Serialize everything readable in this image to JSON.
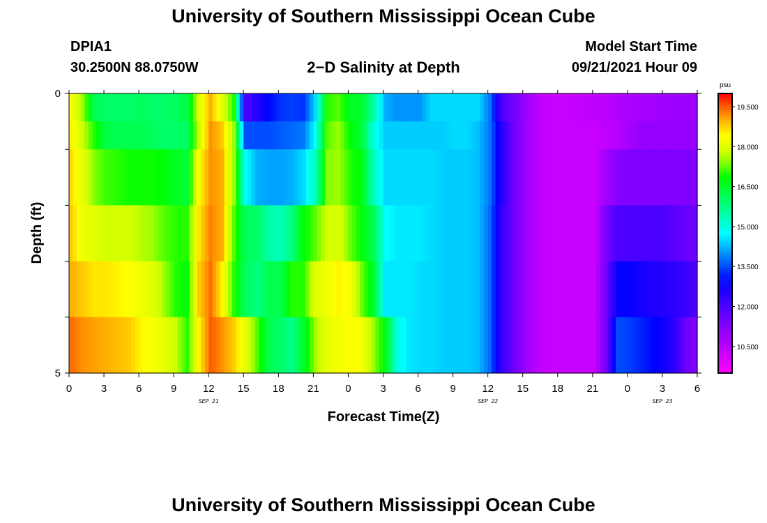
{
  "header": {
    "title": "University of Southern Mississippi Ocean Cube",
    "station": "DPIA1",
    "coords": "30.2500N  88.0750W",
    "chart_title": "2−D Salinity at Depth",
    "start_label": "Model Start Time",
    "start_value": "09/21/2021 Hour 09"
  },
  "footer": {
    "title": "University of Southern Mississippi Ocean Cube"
  },
  "chart_data": {
    "type": "heatmap",
    "title": "2-D Salinity at Depth",
    "xlabel": "Forecast Time(Z)",
    "ylabel": "Depth (ft)",
    "x_tick_labels": [
      "0",
      "3",
      "6",
      "9",
      "12",
      "15",
      "18",
      "21",
      "0",
      "3",
      "6",
      "9",
      "12",
      "15",
      "18",
      "21",
      "0",
      "3",
      "6"
    ],
    "x_range_hours": [
      0,
      54
    ],
    "date_labels": [
      {
        "label": "SEP 21",
        "hour": 12
      },
      {
        "label": "SEP 22",
        "hour": 36
      },
      {
        "label": "SEP 23",
        "hour": 51
      }
    ],
    "y_tick_labels": [
      "0",
      "5"
    ],
    "ylim": [
      0,
      5
    ],
    "colorbar": {
      "unit": "psu",
      "min": 9.5,
      "max": 20.0,
      "labels": [
        "19.500",
        "18.000",
        "16.500",
        "15.000",
        "13.500",
        "12.000",
        "10.500"
      ],
      "label_values": [
        19.5,
        18.0,
        16.5,
        15.0,
        13.5,
        12.0,
        10.5
      ]
    },
    "depth_levels_ft": [
      0,
      0.5,
      1.5,
      2.5,
      3.5,
      4.5
    ],
    "hours": [
      0,
      1,
      2,
      3,
      4,
      5,
      6,
      7,
      8,
      9,
      10,
      11,
      12,
      13,
      14,
      15,
      16,
      17,
      18,
      19,
      20,
      21,
      22,
      23,
      24,
      25,
      26,
      27,
      28,
      29,
      30,
      31,
      32,
      33,
      34,
      35,
      36,
      37,
      38,
      39,
      40,
      41,
      42,
      43,
      44,
      45,
      46,
      47,
      48,
      49,
      50,
      51,
      52,
      53,
      54
    ],
    "series": [
      {
        "name": "0 ft",
        "values": [
          18.3,
          17.5,
          16.2,
          16.0,
          16.0,
          16.0,
          16.1,
          16.0,
          16.0,
          16.1,
          16.3,
          18.0,
          19.0,
          18.0,
          17.0,
          12.0,
          12.5,
          13.0,
          13.3,
          13.4,
          13.3,
          14.5,
          17.0,
          17.2,
          16.6,
          16.5,
          15.5,
          14.2,
          14.0,
          14.0,
          14.0,
          14.5,
          14.5,
          14.5,
          14.5,
          14.5,
          13.8,
          12.0,
          11.5,
          11.0,
          10.5,
          10.3,
          10.3,
          10.3,
          10.4,
          10.4,
          10.5,
          10.6,
          10.7,
          10.8,
          10.8,
          10.9,
          10.9,
          10.9,
          10.9
        ]
      },
      {
        "name": "0.5 ft",
        "values": [
          18.5,
          17.7,
          17.0,
          16.3,
          16.2,
          16.2,
          16.2,
          16.1,
          16.0,
          16.0,
          16.1,
          17.8,
          19.2,
          18.8,
          17.5,
          13.5,
          13.5,
          13.5,
          13.6,
          13.7,
          13.8,
          14.8,
          17.2,
          17.5,
          16.8,
          16.4,
          15.0,
          14.4,
          14.4,
          14.4,
          14.4,
          14.4,
          14.4,
          14.5,
          14.5,
          14.3,
          13.8,
          12.5,
          11.6,
          11.0,
          10.5,
          10.3,
          10.3,
          10.3,
          10.3,
          10.3,
          10.4,
          10.5,
          10.8,
          11.0,
          11.0,
          11.0,
          11.0,
          11.0,
          11.0
        ]
      },
      {
        "name": "1.5 ft",
        "values": [
          18.7,
          18.0,
          17.4,
          17.1,
          17.0,
          16.9,
          16.9,
          16.9,
          16.8,
          16.6,
          16.4,
          18.4,
          19.2,
          19.0,
          17.5,
          14.8,
          14.2,
          14.1,
          14.1,
          14.2,
          14.5,
          15.3,
          17.4,
          17.5,
          17.0,
          16.7,
          15.3,
          14.5,
          14.5,
          14.5,
          14.5,
          14.5,
          14.4,
          14.4,
          14.4,
          14.3,
          13.8,
          12.5,
          11.6,
          11.0,
          10.5,
          10.3,
          10.3,
          10.3,
          10.3,
          10.3,
          10.8,
          11.2,
          11.3,
          11.3,
          11.3,
          11.3,
          11.3,
          11.3,
          11.3
        ]
      },
      {
        "name": "2.5 ft",
        "values": [
          18.8,
          18.2,
          18.0,
          17.8,
          17.8,
          17.8,
          17.6,
          17.5,
          17.2,
          17.0,
          17.0,
          18.6,
          19.3,
          19.0,
          17.2,
          16.1,
          16.0,
          15.5,
          15.3,
          15.8,
          16.8,
          17.2,
          17.8,
          17.9,
          17.3,
          16.8,
          16.2,
          14.8,
          14.6,
          14.6,
          14.6,
          14.5,
          14.4,
          14.4,
          14.4,
          14.3,
          13.7,
          12.3,
          11.6,
          11.0,
          10.5,
          10.3,
          10.3,
          10.3,
          10.3,
          10.3,
          11.4,
          12.0,
          12.0,
          12.0,
          12.0,
          12.0,
          11.8,
          11.6,
          11.6
        ]
      },
      {
        "name": "3.5 ft",
        "values": [
          19.0,
          18.8,
          18.6,
          18.6,
          18.5,
          18.4,
          18.2,
          18.0,
          17.5,
          17.0,
          16.8,
          18.8,
          19.4,
          18.5,
          17.0,
          16.1,
          15.8,
          16.2,
          16.2,
          17.0,
          17.0,
          18.0,
          18.2,
          18.5,
          18.3,
          17.3,
          16.5,
          14.6,
          14.6,
          14.6,
          14.5,
          14.5,
          14.4,
          14.4,
          14.4,
          14.3,
          13.7,
          12.3,
          11.6,
          11.0,
          10.5,
          10.3,
          10.3,
          10.3,
          10.3,
          10.3,
          11.5,
          12.9,
          12.9,
          12.7,
          12.6,
          12.5,
          12.4,
          12.2,
          11.8
        ]
      },
      {
        "name": "4.5 ft",
        "values": [
          19.4,
          19.2,
          19.1,
          19.0,
          18.9,
          18.8,
          18.5,
          18.3,
          18.1,
          17.7,
          17.0,
          18.5,
          19.5,
          19.2,
          18.8,
          18.0,
          17.2,
          16.2,
          16.0,
          15.7,
          16.5,
          17.5,
          18.1,
          18.3,
          18.4,
          18.3,
          17.5,
          16.7,
          15.0,
          14.6,
          14.5,
          14.5,
          14.4,
          14.4,
          14.4,
          14.3,
          13.7,
          12.3,
          11.6,
          11.0,
          10.5,
          10.3,
          10.3,
          10.3,
          10.3,
          10.3,
          11.5,
          13.5,
          13.4,
          13.2,
          13.0,
          12.8,
          12.3,
          11.5,
          11.2
        ]
      }
    ]
  }
}
